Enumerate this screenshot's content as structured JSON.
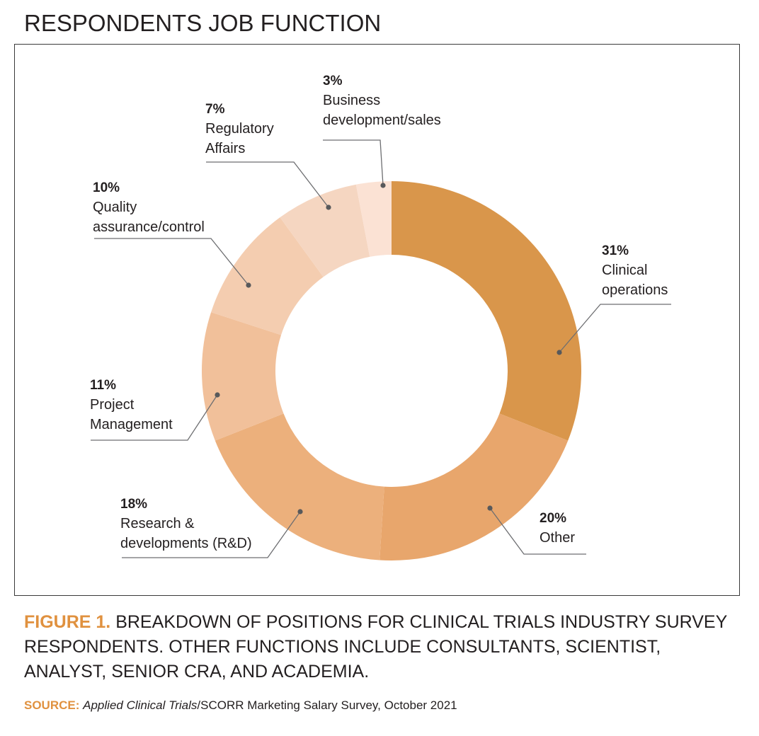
{
  "title": "RESPONDENTS JOB FUNCTION",
  "chart_data": {
    "type": "pie",
    "variant": "donut",
    "slices": [
      {
        "label_lines": [
          "Clinical",
          "operations"
        ],
        "pct_label": "31%",
        "value": 31,
        "color": "#d9964b"
      },
      {
        "label_lines": [
          "Other"
        ],
        "pct_label": "20%",
        "value": 20,
        "color": "#e8a66c"
      },
      {
        "label_lines": [
          "Research &",
          "developments (R&D)"
        ],
        "pct_label": "18%",
        "value": 18,
        "color": "#ecb07c"
      },
      {
        "label_lines": [
          "Project",
          "Management"
        ],
        "pct_label": "11%",
        "value": 11,
        "color": "#f1c09a"
      },
      {
        "label_lines": [
          "Quality",
          "assurance/control"
        ],
        "pct_label": "10%",
        "value": 10,
        "color": "#f4cdb0"
      },
      {
        "label_lines": [
          "Regulatory",
          "Affairs"
        ],
        "pct_label": "7%",
        "value": 7,
        "color": "#f5d6c1"
      },
      {
        "label_lines": [
          "Business",
          "development/sales"
        ],
        "pct_label": "3%",
        "value": 3,
        "color": "#fbe2d4"
      }
    ]
  },
  "caption": {
    "lead": "FIGURE 1.",
    "text": " BREAKDOWN OF POSITIONS FOR CLINICAL TRIALS INDUSTRY SURVEY RESPONDENTS. OTHER FUNCTIONS INCLUDE CONSULTANTS, SCIENTIST, ANALYST, SENIOR CRA, AND ACADEMIA."
  },
  "source": {
    "lead": "SOURCE:",
    "italic": "Applied Clinical Trials",
    "text": "/SCORR Marketing Salary Survey, October 2021"
  }
}
